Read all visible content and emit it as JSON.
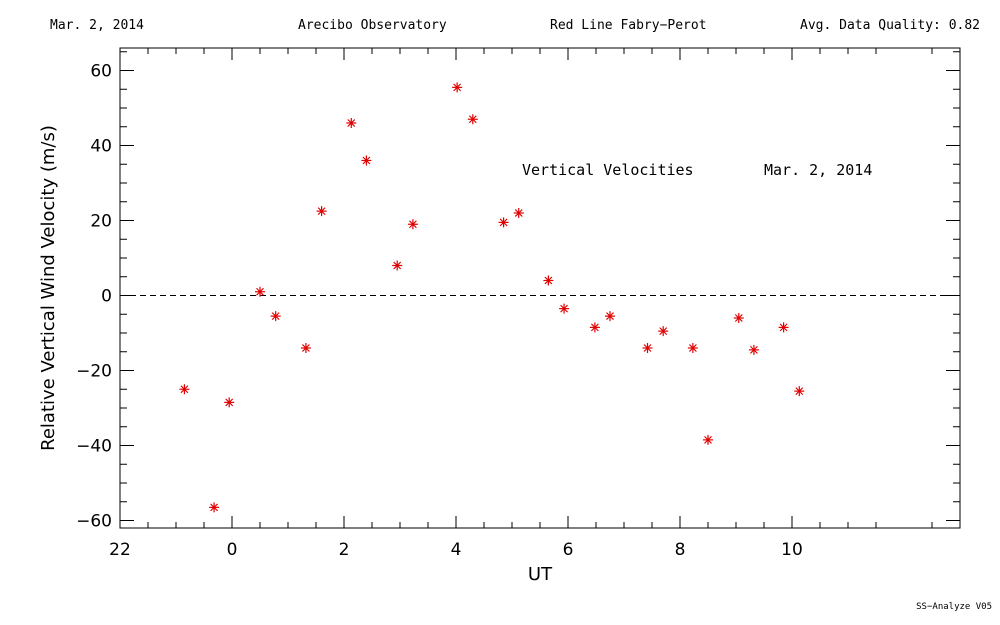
{
  "header": {
    "date": "Mar. 2, 2014",
    "observatory": "Arecibo Observatory",
    "instrument": "Red Line Fabry−Perot",
    "quality": "Avg. Data Quality: 0.82"
  },
  "footer": "SS−Analyze V05",
  "colors": {
    "points": "#e00000",
    "axes": "#000000"
  },
  "chart_data": {
    "type": "scatter",
    "xlabel": "UT",
    "ylabel": "Relative Vertical Wind Velocity (m/s)",
    "xlim": [
      -2,
      13
    ],
    "ylim": [
      -62,
      66
    ],
    "x_ticks": [
      22,
      0,
      2,
      4,
      6,
      8,
      10
    ],
    "y_ticks": [
      -60,
      -40,
      -20,
      0,
      20,
      40,
      60
    ],
    "zero_line": "dashed",
    "grid": false,
    "annotations": [
      "Vertical Velocities",
      "Mar. 2, 2014"
    ],
    "series": [
      {
        "marker": "asterisk",
        "x": [
          -0.85,
          -0.32,
          -0.05,
          0.5,
          0.78,
          1.32,
          1.6,
          2.13,
          2.4,
          2.95,
          3.23,
          4.02,
          4.3,
          4.85,
          5.12,
          5.65,
          5.93,
          6.48,
          6.75,
          7.42,
          7.7,
          8.23,
          8.5,
          9.05,
          9.32,
          9.85,
          10.13
        ],
        "y": [
          -25,
          -56.5,
          -28.5,
          1,
          -5.5,
          -14,
          22.5,
          46,
          36,
          8,
          19,
          55.5,
          47,
          19.5,
          22,
          4,
          -3.5,
          -8.5,
          -5.5,
          -14,
          -9.5,
          -14,
          -38.5,
          -6,
          -14.5,
          -8.5,
          -25.5
        ]
      }
    ]
  }
}
